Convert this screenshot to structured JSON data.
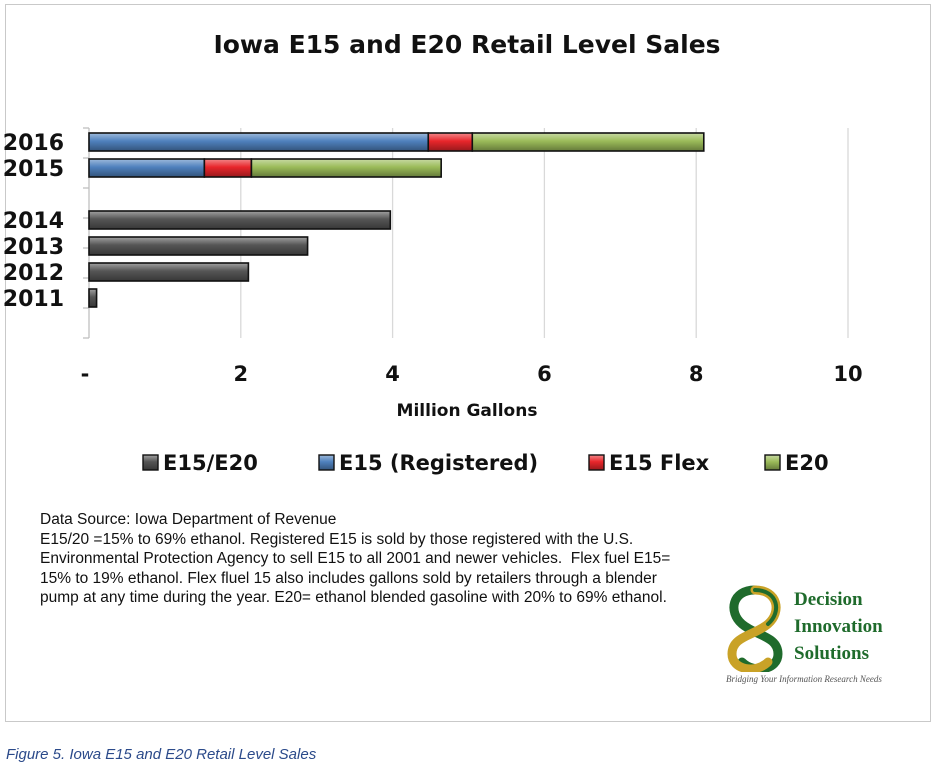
{
  "chart_data": {
    "type": "bar",
    "orientation": "horizontal",
    "stacked": true,
    "title": "Iowa E15 and E20 Retail Level Sales",
    "xlabel": "Million Gallons",
    "ylabel": "",
    "xlim": [
      0,
      10
    ],
    "x_ticks": [
      "-",
      "2",
      "4",
      "6",
      "8",
      "10"
    ],
    "x_tick_values": [
      0,
      2,
      4,
      6,
      8,
      10
    ],
    "categories": [
      "2016",
      "2015",
      "",
      "2014",
      "2013",
      "2012",
      "2011"
    ],
    "series": [
      {
        "name": "E15/E20",
        "color": "#555555",
        "values": [
          0,
          0,
          0,
          3.97,
          2.88,
          2.1,
          0.1
        ]
      },
      {
        "name": "E15 (Registered)",
        "color": "#4f81bd",
        "values": [
          4.47,
          1.52,
          0,
          0,
          0,
          0,
          0
        ]
      },
      {
        "name": "E15 Flex",
        "color": "#e8262b",
        "values": [
          0.58,
          0.62,
          0,
          0,
          0,
          0,
          0
        ]
      },
      {
        "name": "E20",
        "color": "#9bbb59",
        "values": [
          3.05,
          2.5,
          0,
          0,
          0,
          0,
          0
        ]
      }
    ],
    "grid": true,
    "legend_position": "bottom"
  },
  "notes": [
    "Data Source: Iowa Department of Revenue",
    "E15/20 =15% to 69% ethanol. Registered E15 is sold by those registered with the U.S. Environmental Protection Agency to sell E15 to all 2001 and newer vehicles.  Flex fuel E15= 15% to 19% ethanol. Flex fluel 15 also includes gallons sold by retailers through a blender pump at any time during the year. E20= ethanol blended gasoline with 20% to 69% ethanol."
  ],
  "logo": {
    "line1": "Decision",
    "line2": "Innovation",
    "line3": "Solutions",
    "tagline": "Bridging Your Information Research Needs"
  },
  "caption": "Figure 5. Iowa E15 and E20 Retail Level Sales"
}
